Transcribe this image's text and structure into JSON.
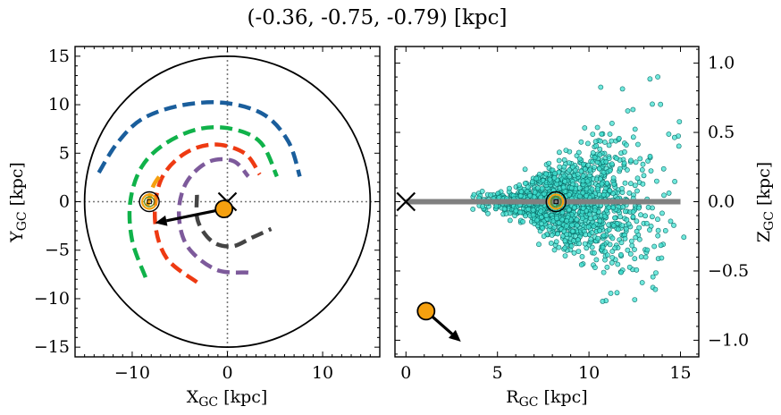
{
  "figure": {
    "title": "(-0.36, -0.75, -0.79) [kpc]"
  },
  "colors": {
    "star_fill": "#40e0d0",
    "star_edge": "#0b6f6a",
    "marker": "#f5a00f",
    "sun_ring": "#6b8e23",
    "midplane": "#808080",
    "arm_blue": "#1a5e9c",
    "arm_green": "#10b24a",
    "arm_red": "#ee3a12",
    "arm_purple": "#7d5a9b",
    "arm_dark": "#444444",
    "arm_orange": "#f5a00f"
  },
  "chart_data": [
    {
      "type": "scatter",
      "title": "",
      "xlabel": "X_GC [kpc]",
      "ylabel": "Y_GC [kpc]",
      "xlim": [
        -16,
        16
      ],
      "ylim": [
        -16,
        16
      ],
      "xticks": [
        -10,
        0,
        10
      ],
      "yticks": [
        -15,
        -10,
        -5,
        0,
        5,
        10,
        15
      ],
      "grid": false,
      "crosshair_lines": {
        "x": 0,
        "y": 0,
        "style": "dotted"
      },
      "disk_boundary_circle": {
        "center": [
          0,
          0
        ],
        "radius": 15
      },
      "spiral_arms": [
        {
          "color": "blue",
          "points": [
            [
              -13.5,
              3.0
            ],
            [
              -11.6,
              6.0
            ],
            [
              -9.0,
              8.5
            ],
            [
              -5.0,
              9.9
            ],
            [
              -0.4,
              10.2
            ],
            [
              3.8,
              9.0
            ],
            [
              6.4,
              6.2
            ],
            [
              7.6,
              2.6
            ]
          ]
        },
        {
          "color": "green",
          "points": [
            [
              -8.6,
              -7.8
            ],
            [
              -10.0,
              -4.0
            ],
            [
              -10.2,
              0.0
            ],
            [
              -9.0,
              3.6
            ],
            [
              -6.5,
              6.0
            ],
            [
              -3.0,
              7.5
            ],
            [
              0.5,
              7.5
            ],
            [
              3.5,
              6.1
            ],
            [
              5.2,
              2.6
            ]
          ]
        },
        {
          "color": "red",
          "points": [
            [
              -3.2,
              -8.3
            ],
            [
              -6.4,
              -5.8
            ],
            [
              -7.6,
              -2.0
            ],
            [
              -7.0,
              2.2
            ],
            [
              -4.6,
              4.9
            ],
            [
              -1.4,
              5.9
            ],
            [
              1.8,
              5.0
            ],
            [
              3.4,
              2.8
            ]
          ]
        },
        {
          "color": "purple",
          "points": [
            [
              2.2,
              -7.3
            ],
            [
              -1.2,
              -7.0
            ],
            [
              -4.2,
              -4.6
            ],
            [
              -5.1,
              -1.2
            ],
            [
              -4.3,
              2.0
            ],
            [
              -2.0,
              4.1
            ],
            [
              0.6,
              4.2
            ],
            [
              2.2,
              2.6
            ]
          ]
        },
        {
          "color": "dark",
          "points": [
            [
              -3.2,
              0.7
            ],
            [
              -3.1,
              -2.0
            ],
            [
              -1.6,
              -4.1
            ],
            [
              0.5,
              -4.6
            ],
            [
              2.6,
              -3.7
            ],
            [
              4.6,
              -2.8
            ]
          ]
        },
        {
          "color": "orange",
          "points": [
            [
              -8.4,
              -0.4
            ],
            [
              -7.8,
              1.6
            ],
            [
              -7.0,
              2.8
            ]
          ]
        }
      ],
      "sun_position": [
        -8.2,
        0.0
      ],
      "galactic_center_marker": [
        0.0,
        0.0
      ],
      "object_position": [
        -0.36,
        -0.75
      ],
      "velocity_arrow_to": [
        -7.6,
        -2.2
      ]
    },
    {
      "type": "scatter",
      "title": "",
      "xlabel": "R_GC [kpc]",
      "ylabel": "Z_GC [kpc]",
      "xlim": [
        -0.6,
        16.0
      ],
      "ylim": [
        -1.12,
        1.12
      ],
      "xticks": [
        0,
        5,
        10,
        15
      ],
      "yticks": [
        -1.0,
        -0.5,
        0.0,
        0.5,
        1.0
      ],
      "y_axis_side": "right",
      "grid": false,
      "midplane_line": {
        "y": 0.0,
        "x_range": [
          0,
          15
        ]
      },
      "sun_position": [
        8.2,
        0.0
      ],
      "galactic_center_marker": [
        0.0,
        0.0
      ],
      "object_position": [
        1.1,
        -0.79
      ],
      "velocity_arrow_to": [
        3.0,
        -1.01
      ],
      "stars_sampled": {
        "count": 1500,
        "r_range": [
          3.6,
          15.3
        ],
        "z_range": [
          -1.07,
          1.07
        ],
        "peak_density_r": 8.5,
        "z_spread_increases_with_r": true
      }
    }
  ]
}
